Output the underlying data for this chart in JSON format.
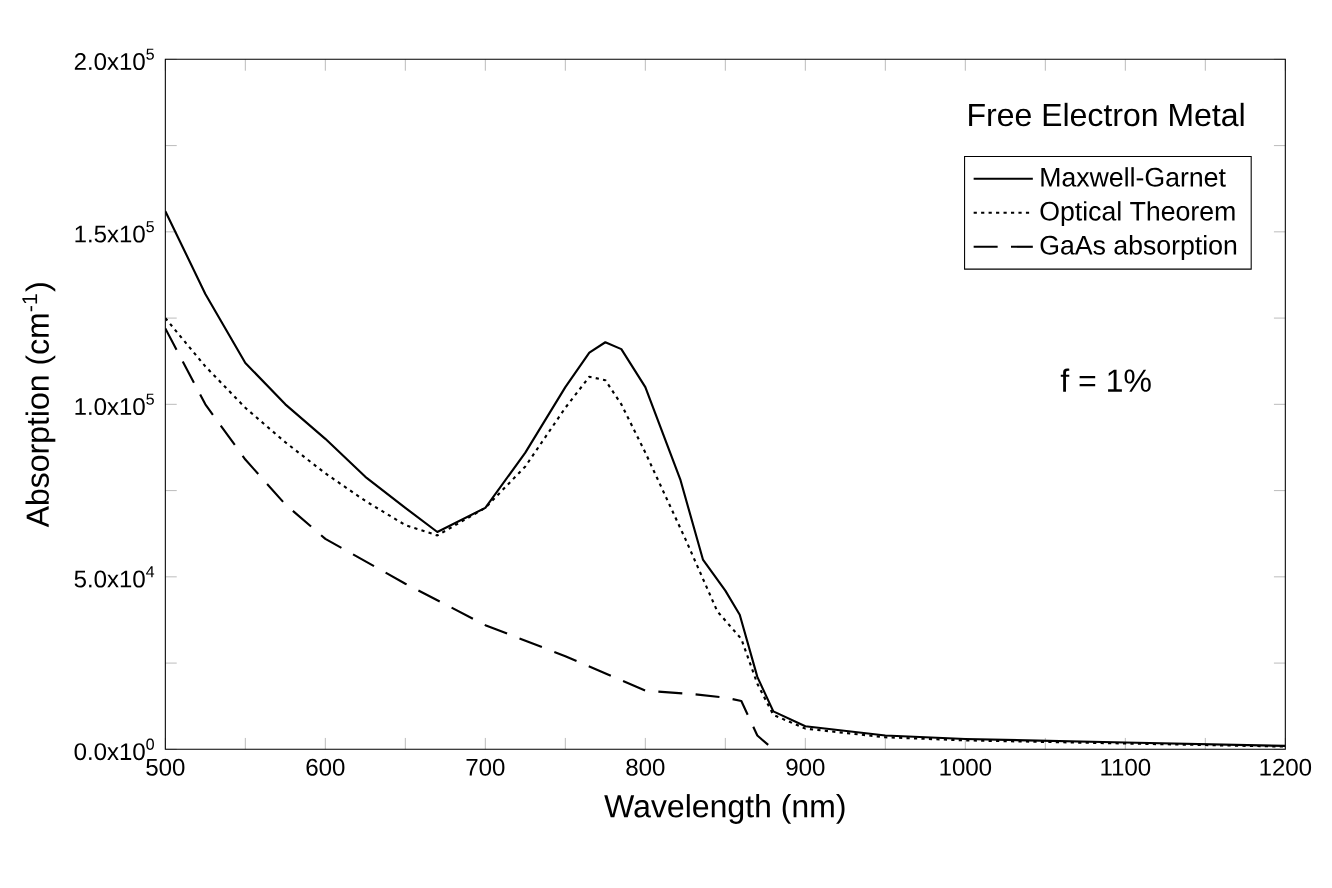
{
  "chart_data": {
    "type": "line",
    "xlabel": "Wavelength (nm)",
    "ylabel": "Absorption (cm$^{-1}$)",
    "annotations": [
      "Free Electron Metal",
      "f = 1%"
    ],
    "legend": "top right",
    "grid": false,
    "marker": "none",
    "xlim": [
      500,
      1200
    ],
    "ylim": [
      0,
      200000
    ],
    "xticks": [
      500,
      {
        "value": 550,
        "label": null
      },
      600,
      {
        "value": 650,
        "label": null
      },
      700,
      {
        "value": 750,
        "label": null
      },
      800,
      {
        "value": 850,
        "label": null
      },
      900,
      {
        "value": 950,
        "label": null
      },
      1000,
      {
        "value": 1050,
        "label": null
      },
      1100,
      {
        "value": 1150,
        "label": null
      },
      1200
    ],
    "yticks": [
      {
        "value": 0,
        "label": "0.0x10$^{0}$"
      },
      {
        "value": 25000,
        "label": null
      },
      {
        "value": 50000,
        "label": "5.0x10$^{4}$"
      },
      {
        "value": 75000,
        "label": null
      },
      {
        "value": 100000,
        "label": "1.0x10$^{5}$"
      },
      {
        "value": 125000,
        "label": null
      },
      {
        "value": 150000,
        "label": "1.5x10$^{5}$"
      },
      {
        "value": 175000,
        "label": null
      },
      {
        "value": 200000,
        "label": "2.0x10$^{5}$"
      }
    ],
    "series": [
      {
        "name": "Maxwell-Garnet",
        "color": "#000000",
        "line_style": "solid",
        "x": [
          500,
          525,
          550,
          575,
          600,
          625,
          650,
          670,
          700,
          725,
          750,
          765,
          775,
          785,
          800,
          822,
          836,
          850,
          859,
          870,
          880,
          900,
          950,
          1000,
          1100,
          1200
        ],
        "values": [
          156000,
          132000,
          112000,
          100000,
          90000,
          79000,
          70000,
          63000,
          70000,
          86000,
          105000,
          115000,
          118000,
          116000,
          105000,
          78000,
          55000,
          46000,
          39000,
          21000,
          11000,
          6700,
          4000,
          3000,
          2000,
          1000
        ]
      },
      {
        "name": "Optical Theorem",
        "color": "#000000",
        "line_style": "dotted",
        "x": [
          500,
          525,
          550,
          575,
          600,
          625,
          650,
          670,
          700,
          725,
          750,
          765,
          775,
          785,
          800,
          825,
          845,
          860,
          870,
          880,
          900,
          950,
          1000,
          1100,
          1200
        ],
        "values": [
          125000,
          111000,
          99000,
          89000,
          80000,
          72000,
          65000,
          62000,
          70000,
          82000,
          99000,
          108000,
          107000,
          100000,
          86000,
          61000,
          40000,
          32000,
          19000,
          10000,
          6000,
          3500,
          2600,
          1700,
          800
        ]
      },
      {
        "name": "GaAs absorption",
        "color": "#000000",
        "line_style": "dashed",
        "x": [
          500,
          525,
          550,
          575,
          600,
          650,
          700,
          750,
          800,
          830,
          850,
          860,
          870,
          880
        ],
        "values": [
          122000,
          100000,
          84000,
          71000,
          61000,
          48000,
          36000,
          27000,
          17000,
          16000,
          15000,
          14000,
          4000,
          0
        ]
      }
    ]
  }
}
